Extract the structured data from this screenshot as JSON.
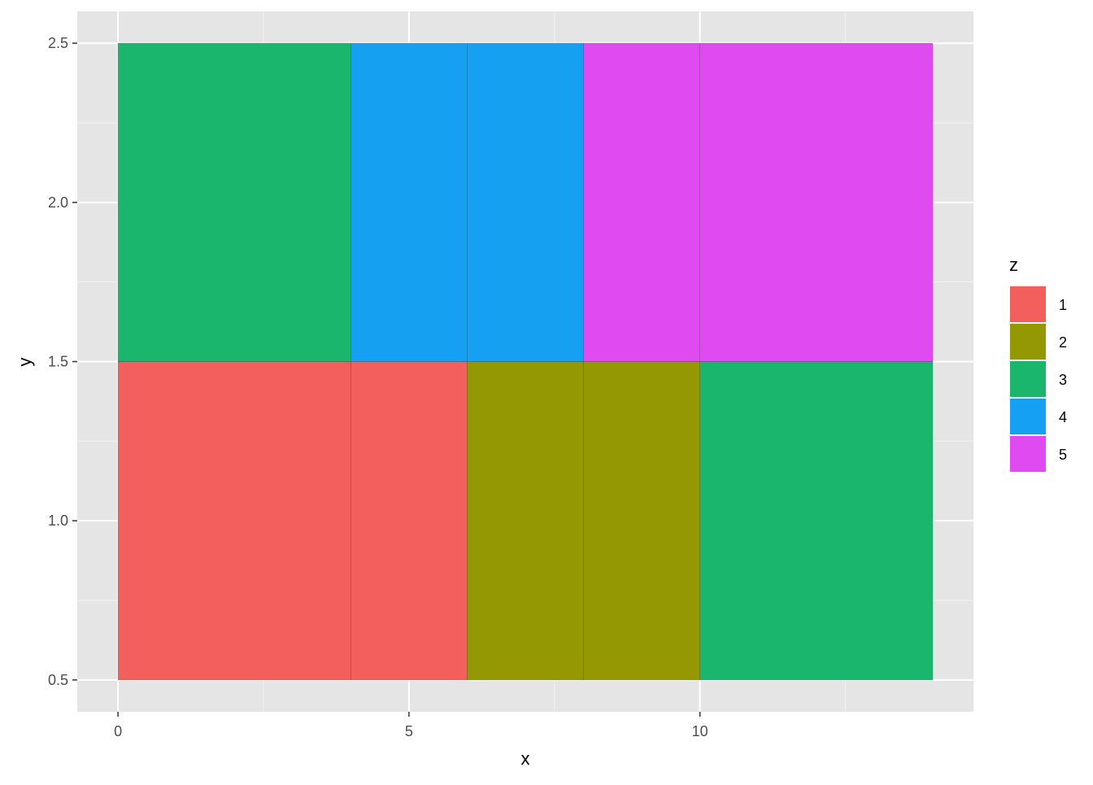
{
  "chart_data": {
    "type": "heatmap",
    "xlabel": "x",
    "ylabel": "y",
    "xlim": [
      -0.7,
      14.7
    ],
    "ylim": [
      0.4,
      2.6
    ],
    "x_ticks": [
      0,
      5,
      10
    ],
    "x_tick_labels": [
      "0",
      "5",
      "10"
    ],
    "y_ticks": [
      0.5,
      1.0,
      1.5,
      2.0,
      2.5
    ],
    "y_tick_labels": [
      "0.5",
      "1.0",
      "1.5",
      "2.0",
      "2.5"
    ],
    "grid": true,
    "tiles": [
      {
        "x": 2,
        "width": 4,
        "y": 1,
        "z": "1"
      },
      {
        "x": 5,
        "width": 2,
        "y": 1,
        "z": "1"
      },
      {
        "x": 7,
        "width": 2,
        "y": 1,
        "z": "2"
      },
      {
        "x": 9,
        "width": 2,
        "y": 1,
        "z": "2"
      },
      {
        "x": 12,
        "width": 4,
        "y": 1,
        "z": "3"
      },
      {
        "x": 2,
        "width": 4,
        "y": 2,
        "z": "3"
      },
      {
        "x": 5,
        "width": 2,
        "y": 2,
        "z": "4"
      },
      {
        "x": 7,
        "width": 2,
        "y": 2,
        "z": "4"
      },
      {
        "x": 9,
        "width": 2,
        "y": 2,
        "z": "5"
      },
      {
        "x": 12,
        "width": 4,
        "y": 2,
        "z": "5"
      }
    ],
    "legend": {
      "title": "z",
      "position": "right",
      "entries": [
        {
          "label": "1",
          "color": "#F25F5C"
        },
        {
          "label": "2",
          "color": "#939803"
        },
        {
          "label": "3",
          "color": "#1BB66D"
        },
        {
          "label": "4",
          "color": "#16A0F1"
        },
        {
          "label": "5",
          "color": "#DF4BF0"
        }
      ]
    }
  }
}
